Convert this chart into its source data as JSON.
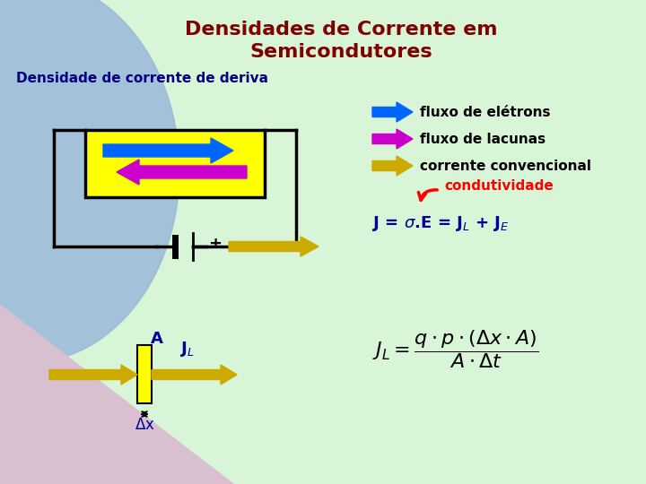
{
  "title_line1": "Densidades de Corrente em",
  "title_line2": "Semicondutores",
  "title_color": "#800000",
  "subtitle": "Densidade de corrente de deriva",
  "subtitle_color": "#000080",
  "bg_color_main": "#d8f5d8",
  "arrow_electron_color": "#0066ff",
  "arrow_hole_color": "#cc00cc",
  "arrow_conv_color": "#ccaa00",
  "box_fill": "#ffff00",
  "legend_labels": [
    "fluxo de elétrons",
    "fluxo de lacunas",
    "corrente convencional"
  ],
  "legend_colors": [
    "#0066ff",
    "#cc00cc",
    "#ccaa00"
  ],
  "condutividade_color": "#ff0000",
  "formula_color": "#000099",
  "text_color": "#000000"
}
